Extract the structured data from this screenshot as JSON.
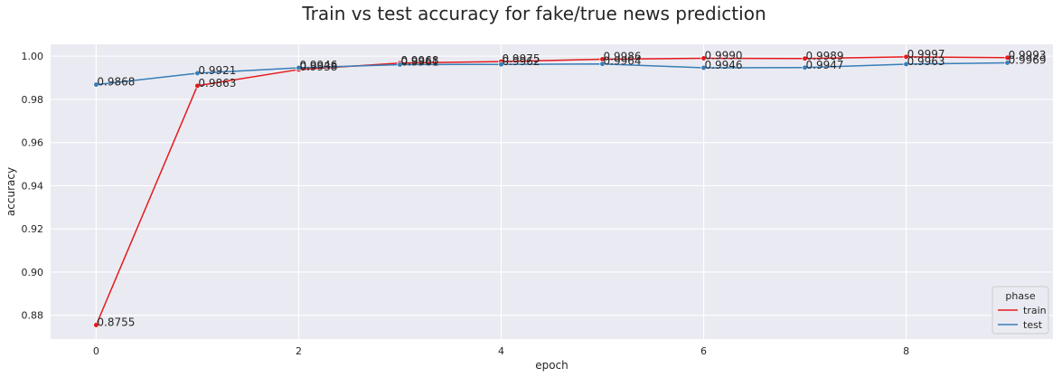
{
  "chart_data": {
    "type": "line",
    "title": "Train vs test accuracy for fake/true news prediction",
    "xlabel": "epoch",
    "ylabel": "accuracy",
    "xlim": [
      -0.45,
      9.45
    ],
    "ylim": [
      0.869,
      1.0055
    ],
    "xticks": [
      0,
      2,
      4,
      6,
      8
    ],
    "yticks": [
      0.88,
      0.9,
      0.92,
      0.94,
      0.96,
      0.98,
      1.0
    ],
    "ytick_labels": [
      "0.88",
      "0.90",
      "0.92",
      "0.94",
      "0.96",
      "0.98",
      "1.00"
    ],
    "grid": true,
    "background": "#eaeaf2",
    "legend": {
      "title": "phase",
      "placement": "bottom-right"
    },
    "x": [
      0,
      1,
      2,
      3,
      4,
      5,
      6,
      7,
      8,
      9
    ],
    "series": [
      {
        "name": "train",
        "color": "#e41a1c",
        "values": [
          0.8755,
          0.9863,
          0.9938,
          0.9968,
          0.9975,
          0.9986,
          0.999,
          0.9989,
          0.9997,
          0.9993
        ],
        "labels": [
          "0.8755",
          "0.9863",
          "0.9938",
          "0.9968",
          "0.9975",
          "0.9986",
          "0.9990",
          "0.9989",
          "0.9997",
          "0.9993"
        ]
      },
      {
        "name": "test",
        "color": "#377eb8",
        "values": [
          0.9868,
          0.9921,
          0.9946,
          0.9961,
          0.9962,
          0.9964,
          0.9946,
          0.9947,
          0.9963,
          0.9969
        ],
        "labels": [
          "0.9868",
          "0.9921",
          "0.9946",
          "0.9961",
          "0.9962",
          "0.9964",
          "0.9946",
          "0.9947",
          "0.9963",
          "0.9969"
        ]
      }
    ]
  }
}
